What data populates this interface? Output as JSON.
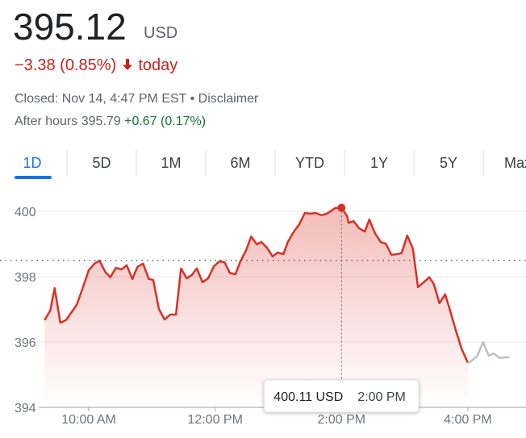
{
  "quote": {
    "price": "395.12",
    "currency": "USD",
    "change": "−3.38 (0.85%)",
    "period": "today",
    "closed": "Closed: Nov 14, 4:47 PM EST",
    "separator": "•",
    "disclaimer": "Disclaimer",
    "after_hours_label": "After hours",
    "after_hours_price": "395.79",
    "after_hours_change": "+0.67 (0.17%)"
  },
  "tabs": [
    "1D",
    "5D",
    "1M",
    "6M",
    "YTD",
    "1Y",
    "5Y",
    "Max"
  ],
  "chart_data": {
    "type": "line",
    "x": [
      9.3,
      9.39,
      9.46,
      9.55,
      9.64,
      9.72,
      9.81,
      9.9,
      10.0,
      10.09,
      10.17,
      10.26,
      10.34,
      10.43,
      10.52,
      10.6,
      10.69,
      10.77,
      10.86,
      10.95,
      11.02,
      11.11,
      11.2,
      11.29,
      11.38,
      11.46,
      11.55,
      11.63,
      11.71,
      11.8,
      11.89,
      11.98,
      12.07,
      12.15,
      12.23,
      12.32,
      12.4,
      12.49,
      12.57,
      12.66,
      12.73,
      12.82,
      12.91,
      12.99,
      13.08,
      13.15,
      13.24,
      13.33,
      13.42,
      13.51,
      13.59,
      13.68,
      13.77,
      13.9,
      14.0,
      14.09,
      14.11,
      14.19,
      14.28,
      14.37,
      14.44,
      14.53,
      14.62,
      14.7,
      14.79,
      14.88,
      14.95,
      15.04,
      15.13,
      15.21,
      15.3,
      15.39,
      15.46,
      15.55,
      15.64,
      15.72,
      15.81,
      15.9,
      16.0,
      16.06,
      16.15,
      16.24,
      16.33,
      16.41,
      16.5,
      16.59,
      16.66
    ],
    "series": [
      {
        "color": "#d93025",
        "values": [
          396.67,
          396.96,
          397.65,
          396.59,
          396.67,
          396.89,
          397.14,
          397.63,
          398.2,
          398.4,
          398.49,
          398.15,
          397.98,
          398.27,
          398.22,
          398.35,
          397.93,
          398.3,
          398.4,
          397.93,
          397.9,
          397.01,
          396.69,
          396.84,
          396.84,
          398.25,
          397.95,
          398.05,
          398.25,
          397.83,
          397.95,
          398.32,
          398.47,
          398.44,
          398.12,
          398.07,
          398.47,
          398.81,
          399.23,
          398.99,
          399.06,
          398.89,
          398.62,
          398.74,
          398.69,
          399.06,
          399.36,
          399.6,
          399.95,
          399.93,
          399.95,
          399.88,
          399.93,
          400.1,
          400.11,
          399.85,
          399.65,
          399.7,
          399.48,
          399.38,
          399.75,
          399.33,
          399.06,
          399.01,
          398.67,
          398.69,
          398.72,
          399.26,
          398.86,
          397.68,
          397.83,
          397.98,
          397.78,
          397.19,
          397.46,
          396.96,
          396.35,
          395.8,
          395.36,
          null,
          null,
          null,
          null,
          null,
          null,
          null,
          null
        ]
      },
      {
        "color": "#bdc1c6",
        "values": [
          null,
          null,
          null,
          null,
          null,
          null,
          null,
          null,
          null,
          null,
          null,
          null,
          null,
          null,
          null,
          null,
          null,
          null,
          null,
          null,
          null,
          null,
          null,
          null,
          null,
          null,
          null,
          null,
          null,
          null,
          null,
          null,
          null,
          null,
          null,
          null,
          null,
          null,
          null,
          null,
          null,
          null,
          null,
          null,
          null,
          null,
          null,
          null,
          null,
          null,
          null,
          null,
          null,
          null,
          null,
          null,
          null,
          null,
          null,
          null,
          null,
          null,
          null,
          null,
          null,
          null,
          null,
          null,
          null,
          null,
          null,
          null,
          null,
          null,
          null,
          null,
          null,
          null,
          395.36,
          395.43,
          395.58,
          396.0,
          395.58,
          395.65,
          395.51,
          395.53,
          395.53
        ]
      }
    ],
    "reference_line": 398.5,
    "xlim": [
      9.3,
      16.92
    ],
    "ylim": [
      394,
      400.5
    ],
    "xticks": [
      {
        "value": 10,
        "label": "10:00 AM"
      },
      {
        "value": 12,
        "label": "12:00 PM"
      },
      {
        "value": 14,
        "label": "2:00 PM"
      },
      {
        "value": 16,
        "label": "4:00 PM"
      }
    ],
    "yticks": [
      394,
      396,
      398,
      400
    ],
    "grid": true,
    "tooltip": {
      "index": 54,
      "label": "400.11 USD",
      "time": "2:00 PM"
    }
  }
}
